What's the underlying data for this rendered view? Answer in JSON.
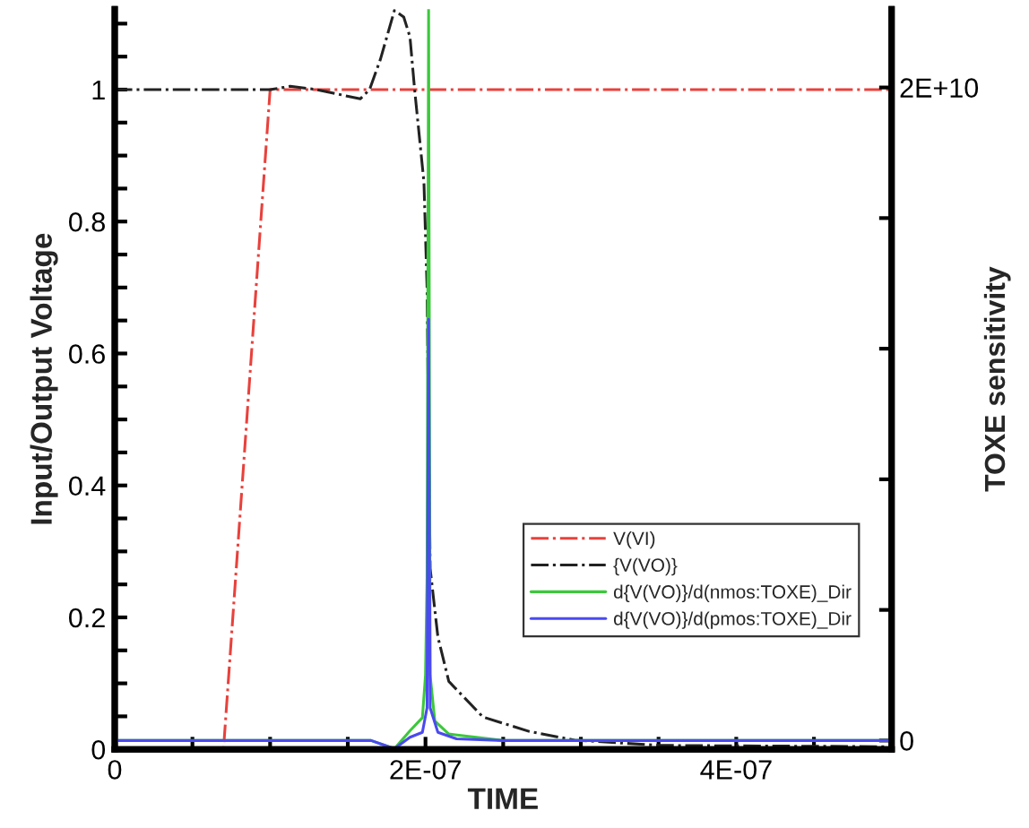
{
  "chart_data": {
    "type": "line",
    "xlabel": "TIME",
    "ylabel": "Input/Output Voltage",
    "y2label": "TOXE sensitivity",
    "xlim": [
      0,
      5e-07
    ],
    "xticks": [
      0,
      {
        "value": 5e-08,
        "label": null
      },
      {
        "value": 1e-07,
        "label": null
      },
      {
        "value": 1.5e-07,
        "label": null
      },
      {
        "value": 2e-07,
        "label": "2E-07"
      },
      {
        "value": 2.5e-07,
        "label": null
      },
      {
        "value": 3e-07,
        "label": null
      },
      {
        "value": 3.5e-07,
        "label": null
      },
      {
        "value": 4e-07,
        "label": "4E-07"
      },
      {
        "value": 4.5e-07,
        "label": null
      }
    ],
    "ylim": [
      0,
      1.122
    ],
    "yticks": [
      0,
      {
        "value": 0.05,
        "label": null
      },
      {
        "value": 0.1,
        "label": null
      },
      {
        "value": 0.15,
        "label": null
      },
      0.2,
      {
        "value": 0.25,
        "label": null
      },
      {
        "value": 0.3,
        "label": null
      },
      {
        "value": 0.35,
        "label": null
      },
      0.4,
      {
        "value": 0.45,
        "label": null
      },
      {
        "value": 0.5,
        "label": null
      },
      {
        "value": 0.55,
        "label": null
      },
      0.6,
      {
        "value": 0.65,
        "label": null
      },
      {
        "value": 0.7,
        "label": null
      },
      {
        "value": 0.75,
        "label": null
      },
      0.8,
      {
        "value": 0.85,
        "label": null
      },
      {
        "value": 0.9,
        "label": null
      },
      {
        "value": 0.95,
        "label": null
      },
      1,
      {
        "value": 1.05,
        "label": null
      },
      {
        "value": 1.1,
        "label": null
      }
    ],
    "y2lim": [
      -270000000.0,
      22400000000.0
    ],
    "y2ticks": [
      0,
      {
        "value": 4000000000.0,
        "label": null
      },
      {
        "value": 8000000000.0,
        "label": null
      },
      {
        "value": 12000000000.0,
        "label": null
      },
      {
        "value": 16000000000.0,
        "label": null
      },
      {
        "value": 20000000000.0,
        "label": "2E+10"
      }
    ],
    "legend": "lower right",
    "grid": false,
    "series": [
      {
        "name": "V(VI)",
        "color": "#e8413c",
        "line_style": "dashdot",
        "x": [
          0,
          7e-08,
          1e-07,
          5e-07
        ],
        "values": [
          0,
          0,
          1,
          1
        ]
      },
      {
        "name": "{V(VO)}",
        "color": "#222222",
        "line_style": "dashdot",
        "x": [
          0,
          1e-07,
          1.13e-07,
          1.3e-07,
          1.58e-07,
          1.64e-07,
          1.71e-07,
          1.8e-07,
          1.86e-07,
          1.9e-07,
          1.93e-07,
          1.99e-07,
          2.01e-07,
          2.03e-07,
          2.08e-07,
          2.15e-07,
          2.37e-07,
          2.67e-07,
          2.96e-07,
          3.5e-07,
          5e-07
        ],
        "values": [
          1,
          1,
          1.005,
          1.0,
          0.986,
          1.0,
          1.046,
          1.12,
          1.11,
          1.08,
          1.0,
          0.86,
          0.7,
          0.274,
          0.17,
          0.103,
          0.049,
          0.027,
          0.014,
          0.006,
          0.004
        ]
      },
      {
        "name": "d{V(VO)}/d(nmos:TOXE)_Dir",
        "color": "#3cc83c",
        "line_style": "solid",
        "axis": "y2",
        "x": [
          0,
          1.65e-07,
          1.8e-07,
          1.9e-07,
          1.98e-07,
          2e-07,
          2.01e-07,
          2.02e-07,
          2.03e-07,
          2.06e-07,
          2.15e-07,
          2.5e-07,
          5e-07
        ],
        "values": [
          0,
          0,
          -250000000.0,
          300000000.0,
          700000000.0,
          2000000000.0,
          5000000000.0,
          22400000000.0,
          2000000000.0,
          600000000.0,
          200000000.0,
          0,
          0
        ]
      },
      {
        "name": "d{V(VO)}/d(pmos:TOXE)_Dir",
        "color": "#4a4af0",
        "line_style": "solid",
        "axis": "y2",
        "x": [
          0,
          1.65e-07,
          1.8e-07,
          1.9e-07,
          1.98e-07,
          2.01e-07,
          2.02e-07,
          2.03e-07,
          2.08e-07,
          2.2e-07,
          2.5e-07,
          5e-07
        ],
        "values": [
          0,
          0,
          -250000000.0,
          100000000.0,
          250000000.0,
          1000000000.0,
          12900000000.0,
          1000000000.0,
          250000000.0,
          50000000.0,
          0,
          0
        ]
      }
    ]
  }
}
